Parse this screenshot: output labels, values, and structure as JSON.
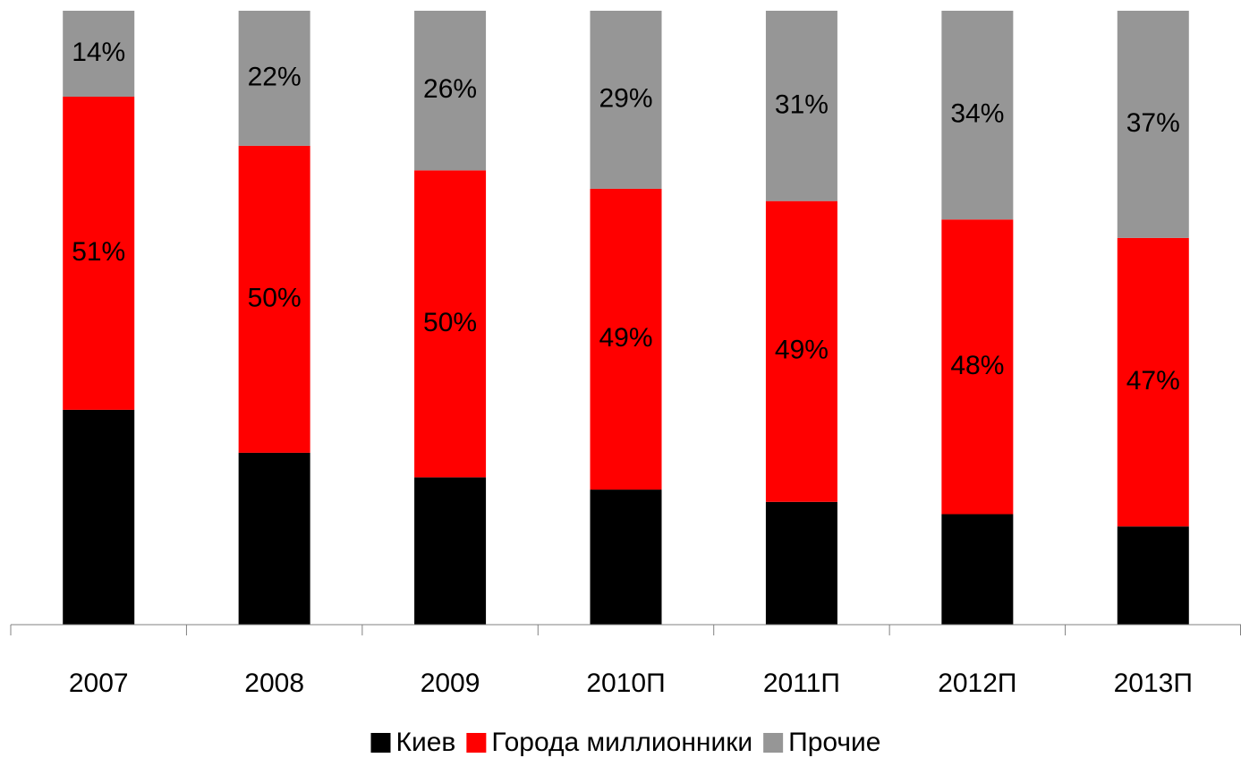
{
  "chart_data": {
    "type": "stacked_bar",
    "categories": [
      "2007",
      "2008",
      "2009",
      "2010П",
      "2011П",
      "2012П",
      "2013П"
    ],
    "series": [
      {
        "name": "Киев",
        "color": "#000000",
        "values": [
          35,
          28,
          24,
          22,
          20,
          18,
          16
        ]
      },
      {
        "name": "Города миллионники",
        "color": "#ff0000",
        "values": [
          51,
          50,
          50,
          49,
          49,
          48,
          47
        ],
        "value_labels": [
          "51%",
          "50%",
          "50%",
          "49%",
          "49%",
          "48%",
          "47%"
        ]
      },
      {
        "name": "Прочие",
        "color": "#969696",
        "values": [
          14,
          22,
          26,
          29,
          31,
          34,
          37
        ],
        "value_labels": [
          "14%",
          "22%",
          "26%",
          "29%",
          "31%",
          "34%",
          "37%"
        ]
      }
    ],
    "ylim": [
      0,
      100
    ],
    "legend": "bottom"
  }
}
